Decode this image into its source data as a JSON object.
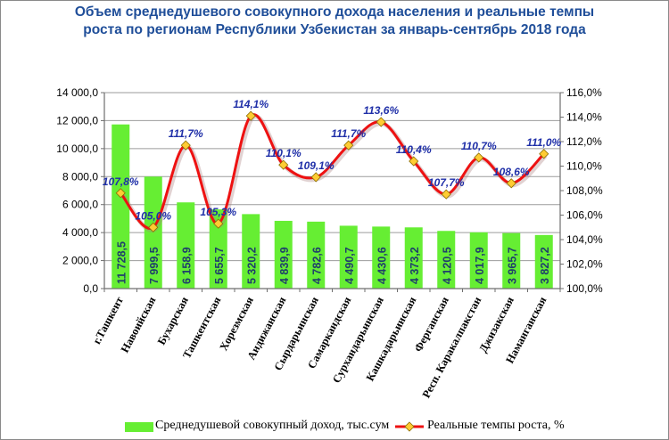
{
  "chart_data": {
    "type": "bar+line",
    "title_line1": "Объем среднедушевого совокупного дохода населения и реальные темпы",
    "title_line2": "роста по регионам Республики Узбекистан за январь-сентябрь 2018 года",
    "categories": [
      "г.Ташкент",
      "Навоийская",
      "Бухарская",
      "Ташкентская",
      "Хорезмская",
      "Андижанская",
      "Сырдарьинская",
      "Самаркандская",
      "Сурхандарьинская",
      "Кашкадарьинская",
      "Ферганская",
      "Респ. Каракалпакстан",
      "Джизакская",
      "Наманганская"
    ],
    "series": [
      {
        "name": "Среднедушевой совокупный доход, тыс.сум",
        "type": "bar",
        "axis": "left",
        "color": "#66ee33",
        "values": [
          11728.5,
          7999.5,
          6158.9,
          5655.7,
          5320.2,
          4839.9,
          4782.6,
          4490.7,
          4430.6,
          4373.2,
          4120.5,
          4017.9,
          3965.7,
          3827.2
        ],
        "labels": [
          "11 728,5",
          "7 999,5",
          "6 158,9",
          "5 655,7",
          "5 320,2",
          "4 839,9",
          "4 782,6",
          "4 490,7",
          "4 430,6",
          "4 373,2",
          "4 120,5",
          "4 017,9",
          "3 965,7",
          "3 827,2"
        ]
      },
      {
        "name": "Реальные темпы роста, %",
        "type": "line",
        "axis": "right",
        "color": "#ee1111",
        "marker_color": "#ffcc33",
        "values": [
          107.8,
          105.0,
          111.7,
          105.3,
          114.1,
          110.1,
          109.1,
          111.7,
          113.6,
          110.4,
          107.7,
          110.7,
          108.6,
          111.0
        ],
        "labels": [
          "107,8%",
          "105,0%",
          "111,7%",
          "105,3%",
          "114,1%",
          "110,1%",
          "109,1%",
          "111,7%",
          "113,6%",
          "110,4%",
          "107,7%",
          "110,7%",
          "108,6%",
          "111,0%"
        ]
      }
    ],
    "y_left": {
      "min": 0,
      "max": 14000,
      "step": 2000,
      "ticks": [
        "0,0",
        "2 000,0",
        "4 000,0",
        "6 000,0",
        "8 000,0",
        "10 000,0",
        "12 000,0",
        "14 000,0"
      ]
    },
    "y_right": {
      "min": 100,
      "max": 116,
      "step": 2,
      "ticks": [
        "100,0%",
        "102,0%",
        "104,0%",
        "106,0%",
        "108,0%",
        "110,0%",
        "112,0%",
        "114,0%",
        "116,0%"
      ]
    },
    "grid": true,
    "legend_position": "bottom"
  }
}
